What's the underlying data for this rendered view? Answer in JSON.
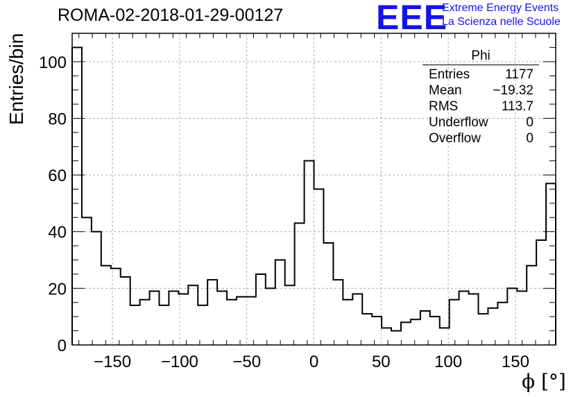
{
  "chart_data": {
    "type": "bar",
    "title": "ROMA-02-2018-01-29-00127",
    "xlabel": "ϕ [°]",
    "ylabel": "Entries/bin",
    "xlim": [
      -180,
      180
    ],
    "ylim": [
      0,
      110
    ],
    "xticks": [
      -150,
      -100,
      -50,
      0,
      50,
      100,
      150
    ],
    "yticks": [
      0,
      20,
      40,
      60,
      80,
      100
    ],
    "grid": true,
    "bin_width": 7.2,
    "values": [
      105,
      45,
      40,
      28,
      27,
      24,
      14,
      16,
      19,
      14,
      19,
      18,
      21,
      14,
      23,
      19,
      16,
      17,
      17,
      25,
      20,
      30,
      21,
      43,
      65,
      55,
      36,
      23,
      16,
      18,
      11,
      10,
      6,
      5,
      8,
      9,
      12,
      10,
      6,
      16,
      19,
      18,
      11,
      13,
      15,
      20,
      19,
      28,
      37,
      57
    ],
    "stats": {
      "name": "Phi",
      "rows": [
        {
          "label": "Entries",
          "value": "1177"
        },
        {
          "label": "Mean",
          "value": "−19.32"
        },
        {
          "label": "RMS",
          "value": "113.7"
        },
        {
          "label": "Underflow",
          "value": "0"
        },
        {
          "label": "Overflow",
          "value": "0"
        }
      ]
    }
  },
  "branding": {
    "logo": "EEE",
    "line1": "Extreme Energy Events",
    "line2": "La Scienza nelle Scuole"
  }
}
